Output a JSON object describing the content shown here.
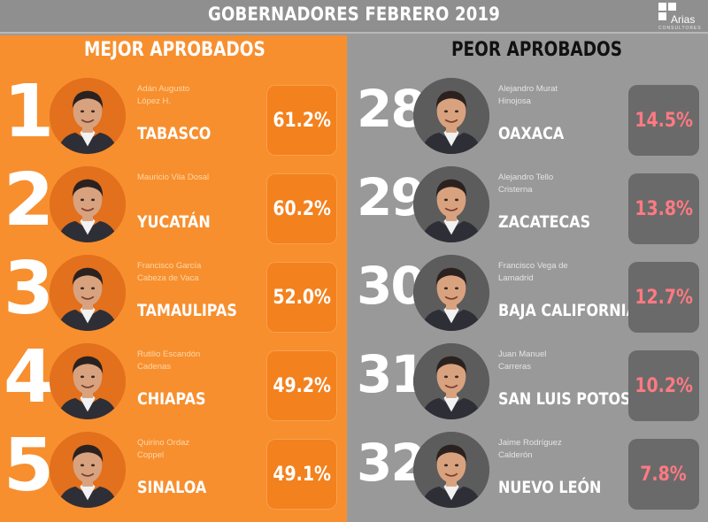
{
  "header": {
    "title": "GOBERNADORES FEBRERO 2019",
    "logo_text": "Arias",
    "logo_sub": "CONSULTORES"
  },
  "left_panel": {
    "title": "MEJOR APROBADOS",
    "colors": {
      "background": "#f78f2f",
      "box": "#f3811d",
      "name": "#ffd7a6",
      "pct": "#ffffff"
    },
    "items": [
      {
        "rank": "1",
        "name_line1": "Adán Augusto",
        "name_line2": "López H.",
        "state": "TABASCO",
        "approval": "61.2%"
      },
      {
        "rank": "2",
        "name_line1": "Mauricio Vila Dosal",
        "name_line2": "",
        "state": "YUCATÁN",
        "approval": "60.2%"
      },
      {
        "rank": "3",
        "name_line1": "Francisco García",
        "name_line2": "Cabeza de Vaca",
        "state": "TAMAULIPAS",
        "approval": "52.0%"
      },
      {
        "rank": "4",
        "name_line1": "Rutilio Escandón",
        "name_line2": "Cadenas",
        "state": "CHIAPAS",
        "approval": "49.2%"
      },
      {
        "rank": "5",
        "name_line1": "Quirino Ordaz",
        "name_line2": "Coppel",
        "state": "SINALOA",
        "approval": "49.1%"
      }
    ]
  },
  "right_panel": {
    "title": "PEOR APROBADOS",
    "colors": {
      "background": "#999999",
      "box": "#6a6a6a",
      "name": "#e4e4e4",
      "pct": "#ff7a82"
    },
    "items": [
      {
        "rank": "28",
        "name_line1": "Alejandro Murat",
        "name_line2": "Hinojosa",
        "state": "OAXACA",
        "approval": "14.5%"
      },
      {
        "rank": "29",
        "name_line1": "Alejandro Tello",
        "name_line2": "Cristerna",
        "state": "ZACATECAS",
        "approval": "13.8%"
      },
      {
        "rank": "30",
        "name_line1": "Francisco Vega de",
        "name_line2": "Lamadrid",
        "state": "BAJA CALIFORNIA",
        "approval": "12.7%"
      },
      {
        "rank": "31",
        "name_line1": "Juan Manuel",
        "name_line2": "Carreras",
        "state": "SAN LUIS POTOSÍ",
        "approval": "10.2%"
      },
      {
        "rank": "32",
        "name_line1": "Jaime Rodríguez",
        "name_line2": "Calderón",
        "state": "NUEVO LEÓN",
        "approval": "7.8%"
      }
    ]
  },
  "photo": {
    "icon": "governor-portrait-icon",
    "skin": "#d9a27f",
    "hair": "#2b2220",
    "suit": "#2e2e36",
    "shirt": "#f2f2f2"
  }
}
